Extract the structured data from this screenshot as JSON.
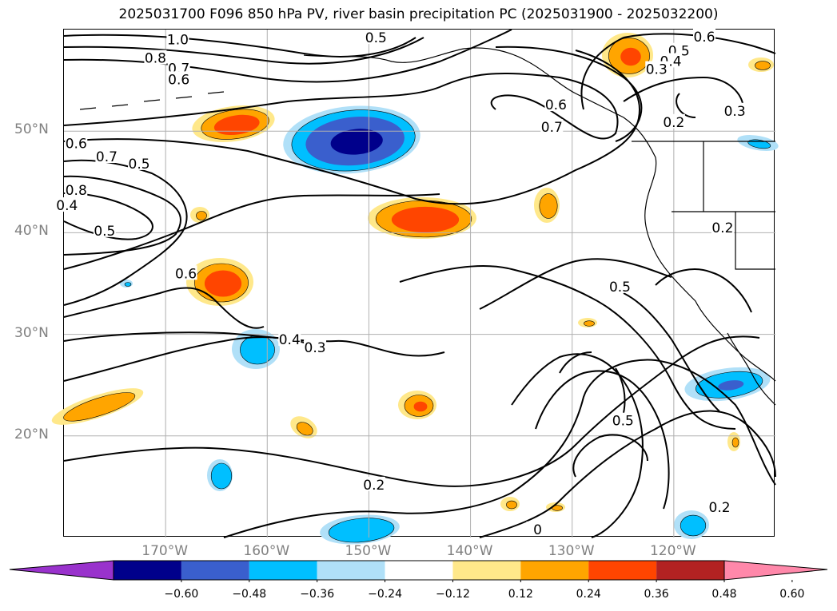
{
  "title": "2025031700 F096 850 hPa PV, river basin precipitation PC (2025031900 - 2025032200)",
  "map": {
    "projection": "plate-carree",
    "lon_range": [
      -180,
      -110
    ],
    "lat_range": [
      10,
      60
    ],
    "gridlines": true,
    "lat_labels": [
      {
        "lat": 50,
        "label": "50°N"
      },
      {
        "lat": 40,
        "label": "40°N"
      },
      {
        "lat": 30,
        "label": "30°N"
      },
      {
        "lat": 20,
        "label": "20°N"
      }
    ],
    "lon_labels": [
      {
        "lon": -170,
        "label": "170°W"
      },
      {
        "lon": -160,
        "label": "160°W"
      },
      {
        "lon": -150,
        "label": "150°W"
      },
      {
        "lon": -140,
        "label": "140°W"
      },
      {
        "lon": -130,
        "label": "130°W"
      },
      {
        "lon": -120,
        "label": "120°W"
      }
    ],
    "pv_contour_labels": [
      {
        "text": "1.0",
        "lon": -168.8,
        "lat": 59.0
      },
      {
        "text": "0.8",
        "lon": -171.0,
        "lat": 57.2
      },
      {
        "text": "0.7",
        "lon": -168.7,
        "lat": 56.2
      },
      {
        "text": "0.6",
        "lon": -168.7,
        "lat": 55.1
      },
      {
        "text": "0.5",
        "lon": -149.3,
        "lat": 59.2
      },
      {
        "text": "0.6",
        "lon": -117.0,
        "lat": 59.3
      },
      {
        "text": "0.5",
        "lon": -119.5,
        "lat": 57.9
      },
      {
        "text": "0.4",
        "lon": -120.3,
        "lat": 56.9
      },
      {
        "text": "0.3",
        "lon": -121.7,
        "lat": 56.1
      },
      {
        "text": "0.6",
        "lon": -131.6,
        "lat": 52.6
      },
      {
        "text": "0.7",
        "lon": -132.0,
        "lat": 50.4
      },
      {
        "text": "0.2",
        "lon": -120.0,
        "lat": 50.9
      },
      {
        "text": "0.3",
        "lon": -114.0,
        "lat": 52.0
      },
      {
        "text": "0.6",
        "lon": -178.8,
        "lat": 48.8
      },
      {
        "text": "0.7",
        "lon": -175.8,
        "lat": 47.5
      },
      {
        "text": "0.5",
        "lon": -172.6,
        "lat": 46.8
      },
      {
        "text": "0.8",
        "lon": -178.8,
        "lat": 44.2
      },
      {
        "text": "0.5",
        "lon": -176.0,
        "lat": 40.2
      },
      {
        "text": "0.4",
        "lon": -179.7,
        "lat": 42.7
      },
      {
        "text": "0.6",
        "lon": -168.0,
        "lat": 36.0
      },
      {
        "text": "0.4",
        "lon": -157.8,
        "lat": 29.5
      },
      {
        "text": "0.3",
        "lon": -155.3,
        "lat": 28.7
      },
      {
        "text": "0.2",
        "lon": -115.2,
        "lat": 40.5
      },
      {
        "text": "0.5",
        "lon": -125.3,
        "lat": 34.7
      },
      {
        "text": "0.5",
        "lon": -125.0,
        "lat": 21.5
      },
      {
        "text": "0.2",
        "lon": -149.5,
        "lat": 15.2
      },
      {
        "text": "0.2",
        "lon": -115.5,
        "lat": 13.0
      },
      {
        "text": "0",
        "lon": -133.4,
        "lat": 10.8
      }
    ],
    "precip_anomaly_regions": [
      {
        "lon": -164.8,
        "lat": 49.6,
        "peak": "positive-strong"
      },
      {
        "lon": -148.4,
        "lat": 48.5,
        "peak": "negative-strong"
      },
      {
        "lon": -144.0,
        "lat": 41.3,
        "peak": "positive-strong"
      },
      {
        "lon": -163.8,
        "lat": 35.0,
        "peak": "positive-strong"
      },
      {
        "lon": -156.2,
        "lat": 28.8,
        "peak": "negative-moderate"
      },
      {
        "lon": -172.5,
        "lat": 22.8,
        "peak": "positive-moderate"
      },
      {
        "lon": -144.6,
        "lat": 22.8,
        "peak": "positive-moderate"
      },
      {
        "lon": -122.5,
        "lat": 57.9,
        "peak": "positive-moderate"
      },
      {
        "lon": -135.4,
        "lat": 43.0,
        "peak": "positive-moderate"
      },
      {
        "lon": -114.8,
        "lat": 24.7,
        "peak": "negative-strong"
      },
      {
        "lon": -164.5,
        "lat": 15.8,
        "peak": "negative-moderate"
      },
      {
        "lon": -150.3,
        "lat": 11.0,
        "peak": "negative-moderate"
      },
      {
        "lon": -117.5,
        "lat": 11.4,
        "peak": "negative-moderate"
      }
    ]
  },
  "colorbar": {
    "extend": "both",
    "tick_labels": [
      "−0.60",
      "−0.48",
      "−0.36",
      "−0.24",
      "−0.12",
      "0.12",
      "0.24",
      "0.36",
      "0.48",
      "0.60"
    ],
    "levels": [
      -0.6,
      -0.48,
      -0.36,
      -0.24,
      -0.12,
      0.12,
      0.24,
      0.36,
      0.48,
      0.6
    ],
    "colors": [
      "#9932cc",
      "#00008b",
      "#3a5fcd",
      "#00bfff",
      "#b0e0f8",
      "#ffffff",
      "#ffe88a",
      "#ffa500",
      "#ff4500",
      "#b22222",
      "#ff88aa"
    ]
  }
}
